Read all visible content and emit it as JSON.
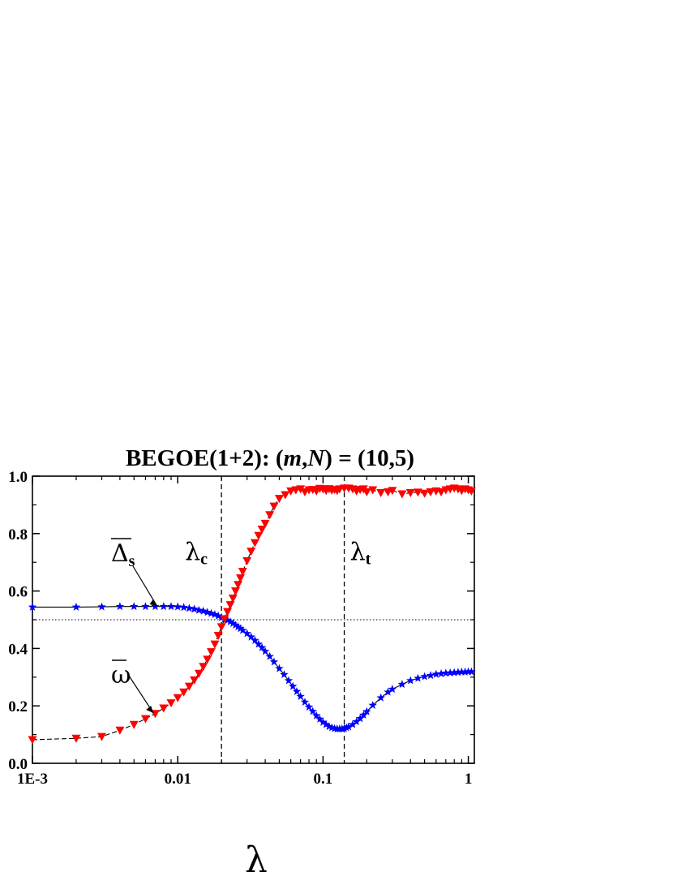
{
  "chart_data": {
    "type": "scatter",
    "title": "BEGOE(1+2): (m,N) = (10,5)",
    "title_parts": {
      "prefix": "BEGOE(1+2): (",
      "m": "m",
      "comma": ",",
      "N": "N",
      "suffix": ") = (10,5)"
    },
    "xlabel": "λ",
    "ylabel": "",
    "x_scale": "log",
    "xlim": [
      0.001,
      1.1
    ],
    "ylim": [
      0.0,
      1.0
    ],
    "x_ticks": [
      {
        "value": 0.001,
        "label": "1E-3"
      },
      {
        "value": 0.01,
        "label": "0.01"
      },
      {
        "value": 0.1,
        "label": "0.1"
      },
      {
        "value": 1,
        "label": "1"
      }
    ],
    "y_ticks": [
      {
        "value": 0.0,
        "label": "0.0"
      },
      {
        "value": 0.2,
        "label": "0.2"
      },
      {
        "value": 0.4,
        "label": "0.4"
      },
      {
        "value": 0.6,
        "label": "0.6"
      },
      {
        "value": 0.8,
        "label": "0.8"
      },
      {
        "value": 1.0,
        "label": "1.0"
      }
    ],
    "reference_lines": [
      {
        "orientation": "horizontal",
        "value": 0.5,
        "style": "dotted"
      },
      {
        "orientation": "vertical",
        "value": 0.02,
        "style": "dashed",
        "label": "λ",
        "subscript": "c"
      },
      {
        "orientation": "vertical",
        "value": 0.14,
        "style": "dashed",
        "label": "λ",
        "subscript": "t"
      }
    ],
    "series": [
      {
        "marker": "star",
        "color": "#0000ff",
        "line": "solid",
        "x": [
          0.001,
          0.002,
          0.003,
          0.004,
          0.005,
          0.006,
          0.007,
          0.008,
          0.009,
          0.01,
          0.011,
          0.012,
          0.013,
          0.014,
          0.015,
          0.016,
          0.017,
          0.018,
          0.019,
          0.02,
          0.021,
          0.022,
          0.023,
          0.024,
          0.025,
          0.026,
          0.027,
          0.028,
          0.03,
          0.032,
          0.034,
          0.036,
          0.038,
          0.04,
          0.043,
          0.046,
          0.05,
          0.054,
          0.058,
          0.062,
          0.066,
          0.07,
          0.075,
          0.08,
          0.085,
          0.09,
          0.095,
          0.1,
          0.105,
          0.11,
          0.115,
          0.12,
          0.125,
          0.13,
          0.135,
          0.14,
          0.145,
          0.15,
          0.16,
          0.17,
          0.18,
          0.19,
          0.2,
          0.22,
          0.25,
          0.28,
          0.3,
          0.35,
          0.4,
          0.45,
          0.5,
          0.55,
          0.6,
          0.65,
          0.7,
          0.75,
          0.8,
          0.85,
          0.9,
          0.95,
          1.0,
          1.05
        ],
        "values": [
          0.544,
          0.544,
          0.545,
          0.546,
          0.546,
          0.546,
          0.546,
          0.546,
          0.546,
          0.545,
          0.543,
          0.54,
          0.537,
          0.533,
          0.53,
          0.526,
          0.522,
          0.518,
          0.513,
          0.508,
          0.503,
          0.498,
          0.493,
          0.487,
          0.481,
          0.475,
          0.469,
          0.463,
          0.452,
          0.44,
          0.428,
          0.415,
          0.403,
          0.39,
          0.372,
          0.353,
          0.33,
          0.309,
          0.288,
          0.268,
          0.25,
          0.233,
          0.213,
          0.196,
          0.181,
          0.166,
          0.154,
          0.143,
          0.135,
          0.128,
          0.124,
          0.121,
          0.12,
          0.12,
          0.12,
          0.121,
          0.124,
          0.127,
          0.135,
          0.145,
          0.156,
          0.168,
          0.18,
          0.202,
          0.228,
          0.248,
          0.258,
          0.275,
          0.288,
          0.296,
          0.302,
          0.306,
          0.31,
          0.312,
          0.314,
          0.315,
          0.316,
          0.317,
          0.318,
          0.318,
          0.319,
          0.319
        ]
      },
      {
        "marker": "triangle-down",
        "color": "#ff0000",
        "line": "dashed",
        "x": [
          0.001,
          0.002,
          0.003,
          0.004,
          0.005,
          0.006,
          0.007,
          0.008,
          0.009,
          0.01,
          0.011,
          0.012,
          0.013,
          0.014,
          0.015,
          0.016,
          0.017,
          0.018,
          0.019,
          0.02,
          0.021,
          0.022,
          0.023,
          0.024,
          0.025,
          0.026,
          0.027,
          0.028,
          0.03,
          0.032,
          0.034,
          0.036,
          0.038,
          0.04,
          0.043,
          0.046,
          0.05,
          0.055,
          0.06,
          0.065,
          0.07,
          0.075,
          0.08,
          0.085,
          0.09,
          0.095,
          0.1,
          0.105,
          0.11,
          0.115,
          0.12,
          0.125,
          0.13,
          0.14,
          0.15,
          0.16,
          0.17,
          0.18,
          0.19,
          0.2,
          0.22,
          0.25,
          0.28,
          0.3,
          0.35,
          0.4,
          0.45,
          0.5,
          0.55,
          0.6,
          0.65,
          0.7,
          0.75,
          0.8,
          0.85,
          0.9,
          0.95,
          1.0,
          1.05
        ],
        "values": [
          0.082,
          0.087,
          0.093,
          0.115,
          0.135,
          0.155,
          0.173,
          0.192,
          0.21,
          0.228,
          0.248,
          0.268,
          0.29,
          0.313,
          0.337,
          0.362,
          0.388,
          0.415,
          0.445,
          0.475,
          0.503,
          0.528,
          0.552,
          0.575,
          0.6,
          0.622,
          0.645,
          0.668,
          0.705,
          0.738,
          0.768,
          0.793,
          0.815,
          0.835,
          0.865,
          0.895,
          0.922,
          0.935,
          0.948,
          0.952,
          0.955,
          0.945,
          0.952,
          0.953,
          0.948,
          0.957,
          0.955,
          0.95,
          0.956,
          0.951,
          0.953,
          0.95,
          0.955,
          0.958,
          0.958,
          0.955,
          0.948,
          0.953,
          0.955,
          0.945,
          0.952,
          0.942,
          0.945,
          0.95,
          0.938,
          0.942,
          0.944,
          0.94,
          0.945,
          0.948,
          0.945,
          0.952,
          0.955,
          0.958,
          0.955,
          0.95,
          0.955,
          0.952,
          0.948
        ]
      }
    ],
    "annotations": [
      {
        "label": "Δ",
        "subscript": "s",
        "overline": true,
        "target": {
          "x": 0.0072,
          "y": 0.548
        }
      },
      {
        "label": "ω",
        "overline": true,
        "target": {
          "x": 0.0068,
          "y": 0.175
        }
      }
    ]
  }
}
